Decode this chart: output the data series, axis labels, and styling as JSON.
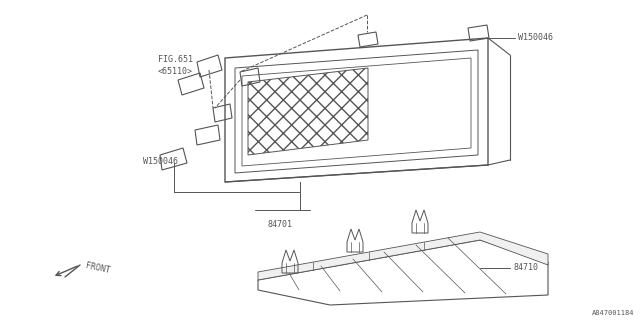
{
  "bg_color": "#ffffff",
  "line_color": "#555555",
  "fig_width": 6.4,
  "fig_height": 3.2,
  "dpi": 100,
  "watermark": "A847001184",
  "labels": {
    "fig651": "FIG.651",
    "fig651sub": "<65110>",
    "w150046_top": "W150046",
    "w150046_bot": "W150046",
    "part84701": "84701",
    "part84710": "84710",
    "front": "FRONT"
  }
}
